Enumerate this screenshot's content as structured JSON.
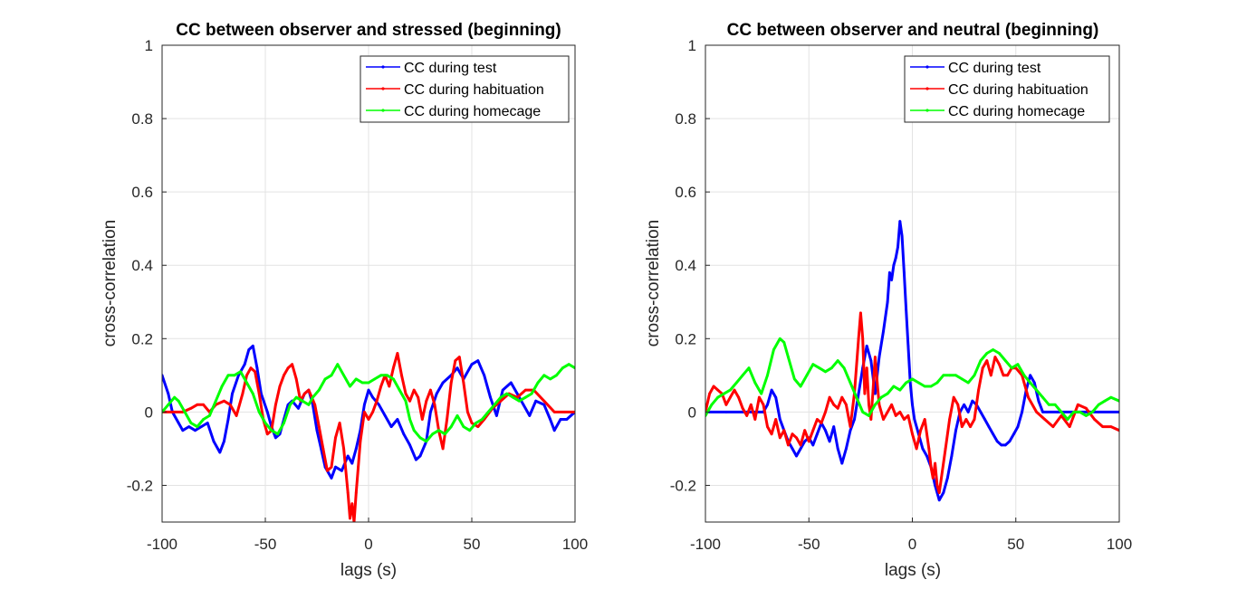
{
  "chart_data": [
    {
      "type": "line",
      "title": "CC between observer and stressed (beginning)",
      "xlabel": "lags (s)",
      "ylabel": "cross-correlation",
      "xlim": [
        -100,
        100
      ],
      "ylim": [
        -0.3,
        1
      ],
      "xticks": [
        "-100",
        "-50",
        "0",
        "50",
        "100"
      ],
      "yticks": [
        "-0.2",
        "0",
        "0.2",
        "0.4",
        "0.6",
        "0.8",
        "1"
      ],
      "xtick_values": [
        -100,
        -50,
        0,
        50,
        100
      ],
      "ytick_values": [
        -0.2,
        0,
        0.2,
        0.4,
        0.6,
        0.8,
        1
      ],
      "grid": true,
      "legend_position": "top-right",
      "series": [
        {
          "name": "CC during test",
          "color": "#0000ff",
          "x": [
            -100,
            -97,
            -95,
            -92,
            -90,
            -87,
            -84,
            -81,
            -78,
            -75,
            -72,
            -70,
            -68,
            -66,
            -63,
            -60,
            -58,
            -56,
            -54,
            -52,
            -49,
            -47,
            -45,
            -43,
            -41,
            -39,
            -37,
            -34,
            -31,
            -29,
            -27,
            -25,
            -23,
            -21,
            -18,
            -16,
            -13,
            -10,
            -8,
            -6,
            -4,
            -2,
            0,
            2,
            5,
            8,
            11,
            14,
            17,
            20,
            23,
            25,
            28,
            30,
            33,
            36,
            40,
            43,
            46,
            50,
            53,
            56,
            59,
            62,
            65,
            69,
            72,
            75,
            78,
            81,
            85,
            88,
            90,
            93,
            96,
            98,
            100
          ],
          "y": [
            0.1,
            0.05,
            0.0,
            -0.03,
            -0.05,
            -0.04,
            -0.05,
            -0.04,
            -0.03,
            -0.08,
            -0.11,
            -0.08,
            -0.02,
            0.05,
            0.1,
            0.13,
            0.17,
            0.18,
            0.12,
            0.05,
            0.0,
            -0.04,
            -0.07,
            -0.06,
            -0.02,
            0.02,
            0.03,
            0.01,
            0.05,
            0.06,
            0.02,
            -0.05,
            -0.1,
            -0.15,
            -0.18,
            -0.15,
            -0.16,
            -0.12,
            -0.14,
            -0.1,
            -0.05,
            0.02,
            0.06,
            0.04,
            0.02,
            -0.01,
            -0.04,
            -0.02,
            -0.06,
            -0.09,
            -0.13,
            -0.12,
            -0.08,
            0.0,
            0.05,
            0.08,
            0.1,
            0.12,
            0.09,
            0.13,
            0.14,
            0.1,
            0.04,
            -0.01,
            0.06,
            0.08,
            0.05,
            0.02,
            -0.01,
            0.03,
            0.02,
            -0.02,
            -0.05,
            -0.02,
            -0.02,
            -0.01,
            0.0
          ]
        },
        {
          "name": "CC during habituation",
          "color": "#ff0000",
          "x": [
            -100,
            -95,
            -90,
            -86,
            -83,
            -80,
            -77,
            -74,
            -70,
            -67,
            -64,
            -61,
            -59,
            -57,
            -55,
            -53,
            -51,
            -49,
            -47,
            -45,
            -43,
            -41,
            -39,
            -37,
            -35,
            -33,
            -31,
            -29,
            -26,
            -24,
            -22,
            -20,
            -18,
            -16,
            -14,
            -12,
            -10,
            -9,
            -8,
            -7,
            -6,
            -5,
            -4,
            -2,
            0,
            2,
            4,
            6,
            8,
            10,
            12,
            14,
            16,
            18,
            20,
            22,
            24,
            26,
            28,
            30,
            32,
            34,
            36,
            38,
            40,
            42,
            44,
            46,
            48,
            50,
            53,
            56,
            60,
            64,
            68,
            72,
            76,
            80,
            85,
            90,
            95,
            100
          ],
          "y": [
            0.0,
            0.0,
            0.0,
            0.01,
            0.02,
            0.02,
            0.0,
            0.02,
            0.03,
            0.02,
            -0.01,
            0.05,
            0.1,
            0.12,
            0.11,
            0.05,
            -0.02,
            -0.06,
            -0.05,
            0.02,
            0.07,
            0.1,
            0.12,
            0.13,
            0.09,
            0.03,
            0.05,
            0.06,
            0.02,
            -0.04,
            -0.1,
            -0.16,
            -0.15,
            -0.07,
            -0.03,
            -0.1,
            -0.22,
            -0.29,
            -0.25,
            -0.3,
            -0.22,
            -0.15,
            -0.08,
            0.0,
            -0.02,
            0.0,
            0.03,
            0.07,
            0.1,
            0.07,
            0.12,
            0.16,
            0.1,
            0.05,
            0.03,
            0.06,
            0.04,
            -0.02,
            0.03,
            0.06,
            0.02,
            -0.05,
            -0.1,
            -0.02,
            0.08,
            0.14,
            0.15,
            0.08,
            0.0,
            -0.03,
            -0.04,
            -0.02,
            0.01,
            0.03,
            0.05,
            0.04,
            0.06,
            0.06,
            0.03,
            0.0,
            0.0,
            0.0
          ]
        },
        {
          "name": "CC during homecage",
          "color": "#00ff00",
          "x": [
            -100,
            -97,
            -94,
            -92,
            -89,
            -86,
            -83,
            -80,
            -77,
            -74,
            -71,
            -68,
            -65,
            -62,
            -59,
            -56,
            -53,
            -50,
            -47,
            -44,
            -41,
            -38,
            -35,
            -32,
            -29,
            -27,
            -24,
            -21,
            -18,
            -15,
            -12,
            -9,
            -6,
            -3,
            0,
            3,
            6,
            9,
            12,
            15,
            18,
            20,
            22,
            25,
            28,
            31,
            34,
            37,
            40,
            43,
            46,
            49,
            52,
            55,
            58,
            61,
            64,
            67,
            70,
            73,
            76,
            79,
            82,
            85,
            88,
            91,
            94,
            97,
            100
          ],
          "y": [
            0.0,
            0.02,
            0.04,
            0.03,
            0.0,
            -0.03,
            -0.04,
            -0.02,
            -0.01,
            0.03,
            0.07,
            0.1,
            0.1,
            0.11,
            0.08,
            0.05,
            0.0,
            -0.03,
            -0.05,
            -0.06,
            -0.03,
            0.02,
            0.04,
            0.03,
            0.02,
            0.04,
            0.06,
            0.09,
            0.1,
            0.13,
            0.1,
            0.07,
            0.09,
            0.08,
            0.08,
            0.09,
            0.1,
            0.1,
            0.09,
            0.06,
            0.03,
            -0.02,
            -0.05,
            -0.07,
            -0.08,
            -0.06,
            -0.05,
            -0.06,
            -0.04,
            -0.01,
            -0.04,
            -0.05,
            -0.03,
            -0.02,
            0.0,
            0.02,
            0.04,
            0.05,
            0.04,
            0.03,
            0.04,
            0.05,
            0.08,
            0.1,
            0.09,
            0.1,
            0.12,
            0.13,
            0.12
          ]
        }
      ]
    },
    {
      "type": "line",
      "title": "CC between observer and neutral (beginning)",
      "xlabel": "lags (s)",
      "ylabel": "cross-correlation",
      "xlim": [
        -100,
        100
      ],
      "ylim": [
        -0.3,
        1
      ],
      "xticks": [
        "-100",
        "-50",
        "0",
        "50",
        "100"
      ],
      "yticks": [
        "-0.2",
        "0",
        "0.2",
        "0.4",
        "0.6",
        "0.8",
        "1"
      ],
      "xtick_values": [
        -100,
        -50,
        0,
        50,
        100
      ],
      "ytick_values": [
        -0.2,
        0,
        0.2,
        0.4,
        0.6,
        0.8,
        1
      ],
      "grid": true,
      "legend_position": "top-right",
      "series": [
        {
          "name": "CC during test",
          "color": "#0000ff",
          "x": [
            -100,
            -90,
            -80,
            -72,
            -70,
            -68,
            -66,
            -64,
            -62,
            -60,
            -58,
            -56,
            -54,
            -52,
            -50,
            -48,
            -46,
            -44,
            -42,
            -40,
            -38,
            -36,
            -34,
            -32,
            -30,
            -28,
            -26,
            -24,
            -22,
            -20,
            -18,
            -16,
            -14,
            -12,
            -11,
            -10,
            -9,
            -8,
            -7,
            -6,
            -5,
            -4,
            -3,
            -2,
            -1,
            0,
            1,
            3,
            5,
            7,
            9,
            11,
            13,
            15,
            17,
            19,
            21,
            23,
            25,
            27,
            29,
            31,
            33,
            35,
            37,
            39,
            41,
            43,
            45,
            47,
            49,
            51,
            53,
            55,
            57,
            59,
            61,
            63,
            65,
            70,
            80,
            90,
            100
          ],
          "y": [
            0.0,
            0.0,
            0.0,
            0.0,
            0.02,
            0.06,
            0.04,
            -0.02,
            -0.05,
            -0.08,
            -0.1,
            -0.12,
            -0.1,
            -0.08,
            -0.07,
            -0.09,
            -0.06,
            -0.03,
            -0.05,
            -0.08,
            -0.04,
            -0.1,
            -0.14,
            -0.1,
            -0.05,
            -0.02,
            0.05,
            0.12,
            0.18,
            0.14,
            0.05,
            0.15,
            0.22,
            0.3,
            0.38,
            0.36,
            0.4,
            0.42,
            0.45,
            0.52,
            0.48,
            0.38,
            0.28,
            0.18,
            0.08,
            0.02,
            -0.02,
            -0.06,
            -0.1,
            -0.12,
            -0.15,
            -0.2,
            -0.24,
            -0.22,
            -0.18,
            -0.12,
            -0.05,
            0.0,
            0.02,
            0.0,
            0.03,
            0.02,
            0.0,
            -0.02,
            -0.04,
            -0.06,
            -0.08,
            -0.09,
            -0.09,
            -0.08,
            -0.06,
            -0.04,
            0.0,
            0.06,
            0.1,
            0.08,
            0.03,
            0.0,
            0.0,
            0.0,
            0.0,
            0.0,
            0.0
          ]
        },
        {
          "name": "CC during habituation",
          "color": "#ff0000",
          "x": [
            -100,
            -98,
            -96,
            -94,
            -92,
            -90,
            -88,
            -86,
            -84,
            -82,
            -80,
            -78,
            -76,
            -74,
            -72,
            -70,
            -68,
            -66,
            -64,
            -62,
            -60,
            -58,
            -56,
            -54,
            -52,
            -50,
            -48,
            -46,
            -44,
            -42,
            -40,
            -38,
            -36,
            -34,
            -32,
            -30,
            -28,
            -26,
            -25,
            -24,
            -23,
            -22,
            -21,
            -20,
            -19,
            -18,
            -17,
            -16,
            -14,
            -12,
            -10,
            -8,
            -6,
            -4,
            -2,
            0,
            2,
            4,
            6,
            8,
            9,
            10,
            11,
            12,
            13,
            14,
            16,
            18,
            20,
            22,
            24,
            26,
            28,
            30,
            32,
            34,
            36,
            38,
            40,
            42,
            44,
            46,
            48,
            50,
            53,
            56,
            60,
            64,
            68,
            72,
            76,
            80,
            84,
            88,
            92,
            96,
            100
          ],
          "y": [
            0.0,
            0.05,
            0.07,
            0.06,
            0.05,
            0.02,
            0.04,
            0.06,
            0.04,
            0.01,
            -0.01,
            0.02,
            -0.02,
            0.04,
            0.02,
            -0.04,
            -0.06,
            -0.02,
            -0.07,
            -0.05,
            -0.09,
            -0.06,
            -0.07,
            -0.09,
            -0.05,
            -0.08,
            -0.05,
            -0.02,
            -0.03,
            0.0,
            0.04,
            0.02,
            0.01,
            0.04,
            0.02,
            -0.04,
            0.05,
            0.2,
            0.27,
            0.2,
            0.05,
            0.12,
            0.02,
            -0.02,
            0.06,
            0.15,
            0.08,
            0.02,
            -0.02,
            0.0,
            0.02,
            -0.01,
            0.0,
            -0.02,
            -0.01,
            -0.06,
            -0.1,
            -0.05,
            -0.02,
            -0.1,
            -0.15,
            -0.18,
            -0.14,
            -0.2,
            -0.22,
            -0.18,
            -0.1,
            -0.02,
            0.04,
            0.02,
            -0.04,
            -0.02,
            -0.04,
            -0.02,
            0.06,
            0.12,
            0.14,
            0.1,
            0.15,
            0.13,
            0.1,
            0.1,
            0.12,
            0.12,
            0.1,
            0.04,
            0.0,
            -0.02,
            -0.04,
            -0.01,
            -0.04,
            0.02,
            0.01,
            -0.02,
            -0.04,
            -0.04,
            -0.05
          ]
        },
        {
          "name": "CC during homecage",
          "color": "#00ff00",
          "x": [
            -100,
            -97,
            -94,
            -91,
            -88,
            -85,
            -82,
            -79,
            -76,
            -73,
            -70,
            -67,
            -64,
            -62,
            -60,
            -57,
            -54,
            -51,
            -48,
            -45,
            -42,
            -39,
            -36,
            -33,
            -30,
            -27,
            -24,
            -21,
            -18,
            -15,
            -12,
            -9,
            -6,
            -3,
            0,
            3,
            6,
            9,
            12,
            15,
            18,
            21,
            24,
            27,
            30,
            33,
            36,
            39,
            42,
            45,
            48,
            51,
            54,
            57,
            60,
            63,
            66,
            69,
            72,
            75,
            78,
            81,
            84,
            87,
            90,
            93,
            96,
            100
          ],
          "y": [
            -0.01,
            0.02,
            0.04,
            0.05,
            0.06,
            0.08,
            0.1,
            0.12,
            0.08,
            0.05,
            0.1,
            0.17,
            0.2,
            0.19,
            0.15,
            0.09,
            0.07,
            0.1,
            0.13,
            0.12,
            0.11,
            0.12,
            0.14,
            0.12,
            0.08,
            0.04,
            0.0,
            -0.01,
            0.02,
            0.04,
            0.05,
            0.07,
            0.06,
            0.08,
            0.09,
            0.08,
            0.07,
            0.07,
            0.08,
            0.1,
            0.1,
            0.1,
            0.09,
            0.08,
            0.1,
            0.14,
            0.16,
            0.17,
            0.16,
            0.14,
            0.12,
            0.13,
            0.1,
            0.08,
            0.06,
            0.04,
            0.02,
            0.02,
            0.0,
            -0.02,
            0.0,
            0.0,
            -0.01,
            0.0,
            0.02,
            0.03,
            0.04,
            0.03
          ]
        }
      ]
    }
  ]
}
